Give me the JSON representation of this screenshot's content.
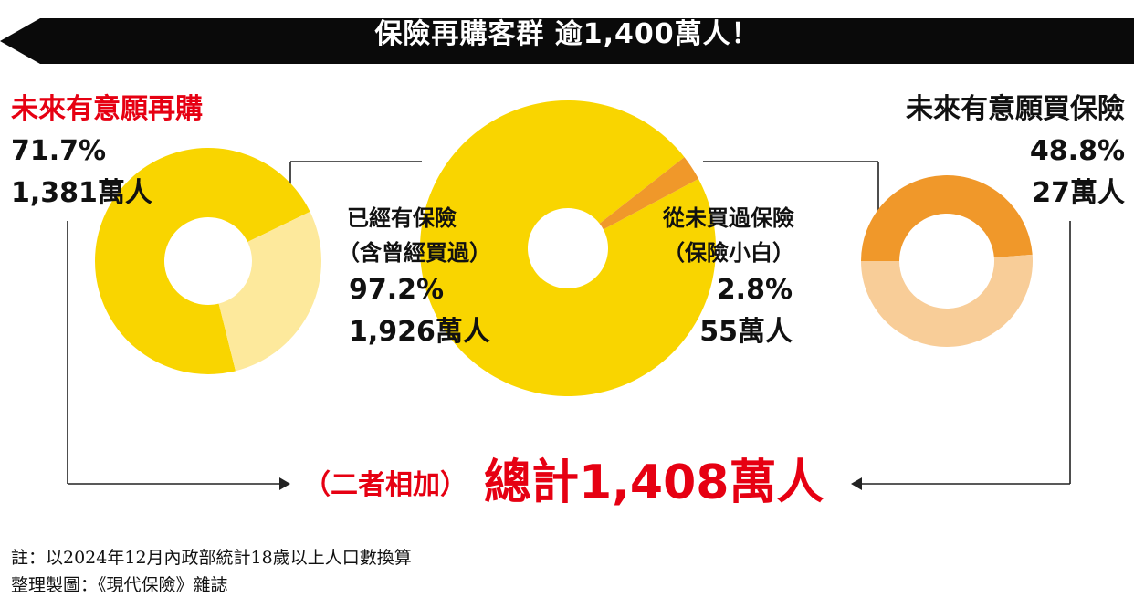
{
  "banner": {
    "title": "保險再購客群 逾1,400萬人！"
  },
  "colors": {
    "banner_bg": "#0a0a0a",
    "yellow": "#f9d500",
    "yellow_light": "#fde99c",
    "orange": "#f0982a",
    "orange_light": "#f8cd98",
    "accent_red": "#e60012",
    "connector": "#222222"
  },
  "chart_data": [
    {
      "type": "pie",
      "donut": true,
      "title": "",
      "series": [
        {
          "name": "",
          "value": 71.7,
          "color": "#f9d500"
        },
        {
          "name": "",
          "value": 28.3,
          "color": "#fde99c"
        }
      ]
    },
    {
      "type": "pie",
      "donut": true,
      "title": "",
      "series": [
        {
          "name": "已經有保險（含曾經買過）",
          "value": 97.2,
          "color": "#f9d500"
        },
        {
          "name": "從未買過保險（保險小白）",
          "value": 2.8,
          "color": "#f0982a"
        }
      ]
    },
    {
      "type": "pie",
      "donut": true,
      "title": "",
      "series": [
        {
          "name": "",
          "value": 48.8,
          "color": "#f0982a"
        },
        {
          "name": "",
          "value": 51.2,
          "color": "#f8cd98"
        }
      ]
    }
  ],
  "left": {
    "title": "未來有意願再購",
    "percent": "71.7%",
    "count": "1,381萬人"
  },
  "center": {
    "insured_line1": "已經有保險",
    "insured_line2": "（含曾經買過）",
    "insured_percent": "97.2%",
    "insured_count": "1,926萬人",
    "new_line1": "從未買過保險",
    "new_line2": "（保險小白）",
    "new_percent": "2.8%",
    "new_count": "55萬人"
  },
  "right": {
    "title": "未來有意願買保險",
    "percent": "48.8%",
    "count": "27萬人"
  },
  "total": {
    "prefix": "（二者相加）",
    "main": "總計1,408萬人"
  },
  "footnotes": {
    "note": "註：以2024年12月內政部統計18歲以上人口數換算",
    "credit": "整理製圖：《現代保險》雜誌"
  }
}
